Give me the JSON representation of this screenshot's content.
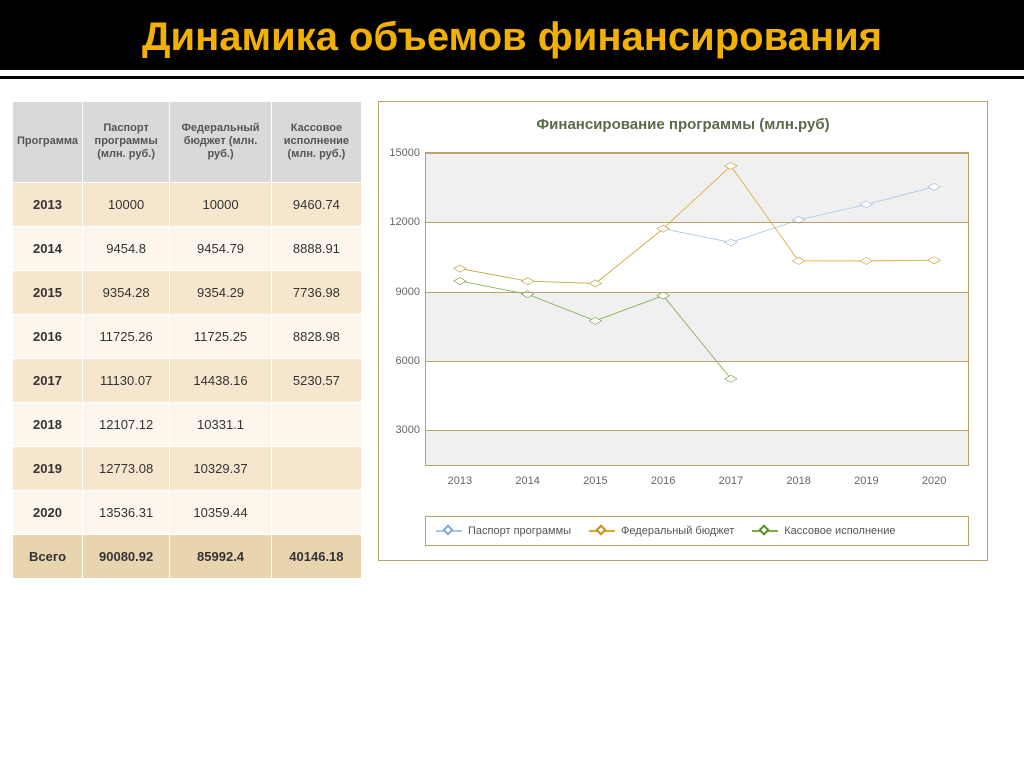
{
  "title": "Динамика объемов финансирования",
  "table": {
    "columns": [
      "Программа",
      "Паспорт программы (млн. руб.)",
      "Федеральный бюджет (млн. руб.)",
      "Кассовое исполнение (млн. руб.)"
    ],
    "rows": [
      [
        "2013",
        "10000",
        "10000",
        "9460.74"
      ],
      [
        "2014",
        "9454.8",
        "9454.79",
        "8888.91"
      ],
      [
        "2015",
        "9354.28",
        "9354.29",
        "7736.98"
      ],
      [
        "2016",
        "11725.26",
        "11725.25",
        "8828.98"
      ],
      [
        "2017",
        "11130.07",
        "14438.16",
        "5230.57"
      ],
      [
        "2018",
        "12107.12",
        "10331.1",
        ""
      ],
      [
        "2019",
        "12773.08",
        "10329.37",
        ""
      ],
      [
        "2020",
        "13536.31",
        "10359.44",
        ""
      ]
    ],
    "total": [
      "Всего",
      "90080.92",
      "85992.4",
      "40146.18"
    ]
  },
  "chart": {
    "type": "line",
    "title": "Финансирование программы (млн.руб)",
    "xvalues": [
      "2013",
      "2014",
      "2015",
      "2016",
      "2017",
      "2018",
      "2019",
      "2020"
    ],
    "yticks": [
      3000,
      6000,
      9000,
      12000,
      15000
    ],
    "ylim": [
      1500,
      15000
    ],
    "series": [
      {
        "name": "Паспорт программы",
        "color": "#a9c8e8",
        "marker_edge": "#7fa8d4",
        "y": [
          10000,
          9454.8,
          9354.28,
          11725.26,
          11130.07,
          12107.12,
          12773.08,
          13536.31
        ]
      },
      {
        "name": "Федеральный бюджет",
        "color": "#d9a92c",
        "marker_edge": "#c08f12",
        "y": [
          10000,
          9454.79,
          9354.29,
          11725.25,
          14438.16,
          10331.1,
          10329.37,
          10359.44
        ]
      },
      {
        "name": "Кассовое исполнение",
        "color": "#7aab3e",
        "marker_edge": "#5a8a22",
        "y": [
          9460.74,
          8888.91,
          7736.98,
          8828.98,
          5230.57
        ]
      }
    ],
    "band_color": "#f0f0f0",
    "grid_color": "#bda36b",
    "background_color": "#ffffff",
    "label_fontsize": 11,
    "title_fontsize": 15,
    "line_width": 2,
    "marker_size": 7
  },
  "colors": {
    "title_text": "#f2b100",
    "title_bg": "#000000",
    "table_header_bg": "#d9d9d9",
    "table_band_a": "#f6e6ce",
    "table_band_b": "#fdf6ec",
    "table_total_bg": "#e8d5b0",
    "chart_border": "#bda36b"
  }
}
